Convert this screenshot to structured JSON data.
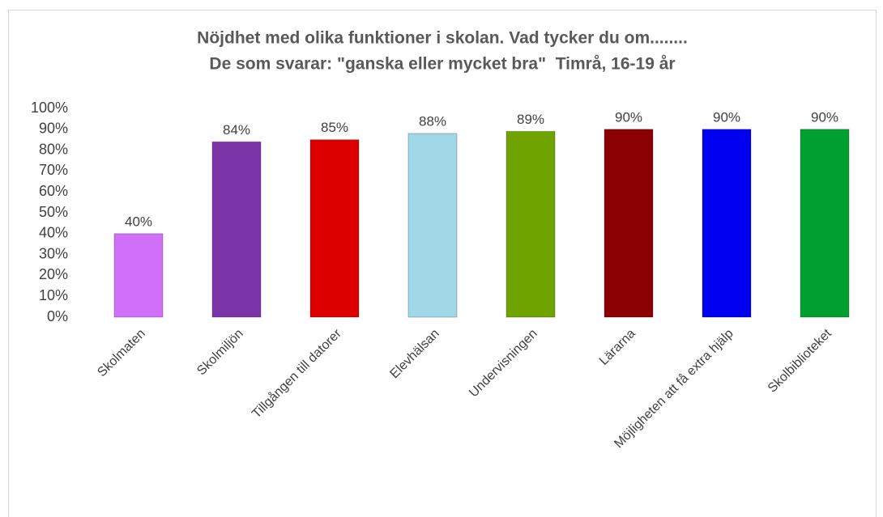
{
  "chart_data": {
    "type": "bar",
    "title": "Nöjdhet med olika funktioner i skolan. Vad tycker du om........",
    "subtitle": "De som svarar: \"ganska eller mycket bra\"  Timrå, 16-19 år",
    "categories": [
      "Skolmaten",
      "Skolmiljön",
      "Tillgången till datorer",
      "Elevhälsan",
      "Undervisningen",
      "Lärarna",
      "Möjligheten att få extra hjälp",
      "Skolbiblioteket"
    ],
    "values": [
      40,
      84,
      85,
      88,
      89,
      90,
      90,
      90
    ],
    "value_labels": [
      "40%",
      "84%",
      "85%",
      "88%",
      "89%",
      "90%",
      "90%",
      "90%"
    ],
    "colors": [
      "#d070f8",
      "#7b35a8",
      "#dd0000",
      "#a0d8e8",
      "#6fa300",
      "#8b0000",
      "#0000f0",
      "#00a030"
    ],
    "ylim": [
      0,
      100
    ],
    "yticks": [
      {
        "value": 0,
        "label": "0%"
      },
      {
        "value": 10,
        "label": "10%"
      },
      {
        "value": 20,
        "label": "20%"
      },
      {
        "value": 30,
        "label": "30%"
      },
      {
        "value": 40,
        "label": "40%"
      },
      {
        "value": 50,
        "label": "50%"
      },
      {
        "value": 60,
        "label": "60%"
      },
      {
        "value": 70,
        "label": "70%"
      },
      {
        "value": 80,
        "label": "80%"
      },
      {
        "value": 90,
        "label": "90%"
      },
      {
        "value": 100,
        "label": "100%"
      }
    ],
    "grid": false
  }
}
